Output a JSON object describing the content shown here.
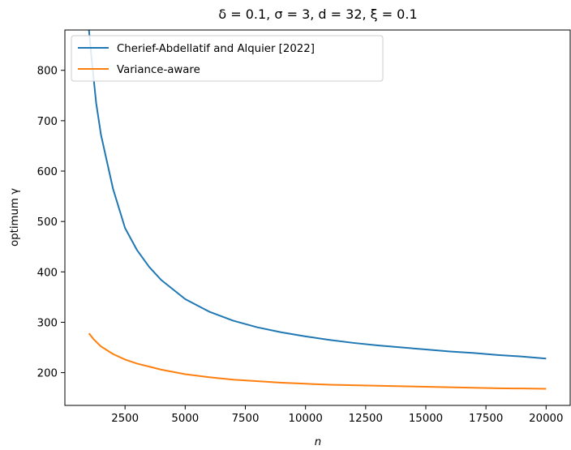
{
  "chart_data": {
    "type": "line",
    "title": "δ = 0.1, σ = 3, d = 32, ξ = 0.1",
    "xlabel": "n",
    "ylabel": "optimum γ",
    "xlim": [
      0,
      21000
    ],
    "ylim": [
      135,
      880
    ],
    "xticks": [
      2500,
      5000,
      7500,
      10000,
      12500,
      15000,
      17500,
      20000
    ],
    "yticks": [
      200,
      300,
      400,
      500,
      600,
      700,
      800
    ],
    "grid": false,
    "legend_position": "upper-left",
    "series": [
      {
        "name": "Cherief-Abdellatif and Alquier [2022]",
        "color": "#1f77b4",
        "points": [
          [
            1000,
            880
          ],
          [
            1100,
            828
          ],
          [
            1300,
            735
          ],
          [
            1500,
            672
          ],
          [
            2000,
            565
          ],
          [
            2500,
            487
          ],
          [
            3000,
            443
          ],
          [
            3500,
            410
          ],
          [
            4000,
            384
          ],
          [
            5000,
            346
          ],
          [
            6000,
            321
          ],
          [
            7000,
            303
          ],
          [
            8000,
            290
          ],
          [
            9000,
            280
          ],
          [
            10000,
            272
          ],
          [
            11000,
            265
          ],
          [
            12000,
            259
          ],
          [
            13000,
            254
          ],
          [
            14000,
            250
          ],
          [
            15000,
            246
          ],
          [
            16000,
            242
          ],
          [
            17000,
            239
          ],
          [
            18000,
            235
          ],
          [
            19000,
            232
          ],
          [
            20000,
            228
          ]
        ]
      },
      {
        "name": "Variance-aware",
        "color": "#ff7f0e",
        "points": [
          [
            1000,
            278
          ],
          [
            1200,
            266
          ],
          [
            1500,
            252
          ],
          [
            2000,
            237
          ],
          [
            2500,
            226
          ],
          [
            3000,
            218
          ],
          [
            3500,
            212
          ],
          [
            4000,
            206
          ],
          [
            5000,
            197
          ],
          [
            6000,
            191
          ],
          [
            7000,
            186
          ],
          [
            8000,
            183
          ],
          [
            9000,
            180
          ],
          [
            10000,
            178
          ],
          [
            11000,
            176
          ],
          [
            12000,
            175
          ],
          [
            13000,
            174
          ],
          [
            14000,
            173
          ],
          [
            15000,
            172
          ],
          [
            16000,
            171
          ],
          [
            17000,
            170
          ],
          [
            18000,
            169
          ],
          [
            19000,
            168.5
          ],
          [
            20000,
            168
          ]
        ]
      }
    ]
  }
}
